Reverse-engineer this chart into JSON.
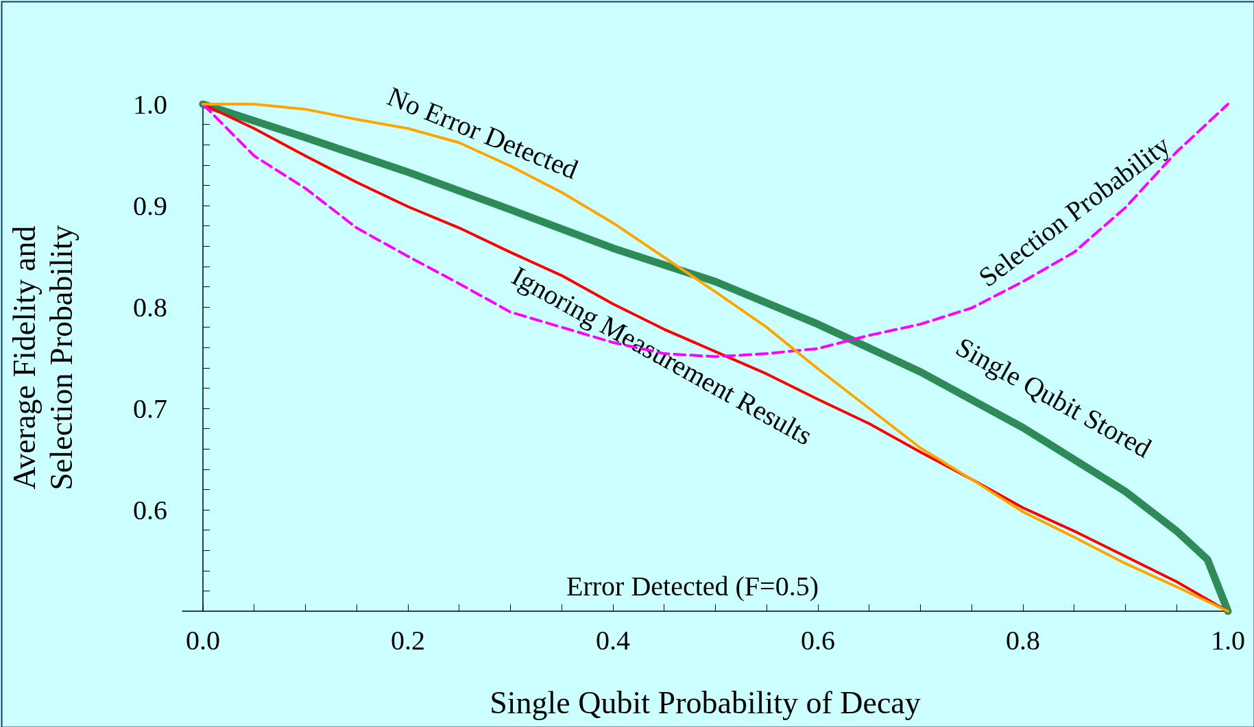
{
  "chart_data": {
    "type": "line",
    "xlabel": "Single Qubit Probability of Decay",
    "ylabel": "Average Fidelity and\nSelection Probability",
    "x": [
      0,
      0.05,
      0.1,
      0.15,
      0.2,
      0.25,
      0.3,
      0.35,
      0.4,
      0.45,
      0.5,
      0.55,
      0.6,
      0.65,
      0.7,
      0.75,
      0.8,
      0.85,
      0.9,
      0.95,
      1.0
    ],
    "series": [
      {
        "name": "No Error Detected",
        "color": "#ffa500",
        "line_style": "solid",
        "values": [
          1,
          1,
          0.995,
          0.985,
          0.976,
          0.962,
          0.939,
          0.913,
          0.883,
          0.849,
          0.815,
          0.78,
          0.739,
          0.7,
          0.661,
          0.63,
          0.598,
          0.573,
          0.547,
          0.524,
          0.5
        ]
      },
      {
        "name": "Selection Probability",
        "color": "#ff00ff",
        "line_style": "dashed",
        "values": [
          1,
          0.949,
          0.917,
          0.878,
          0.85,
          0.823,
          0.795,
          0.78,
          0.765,
          0.754,
          0.751,
          0.754,
          0.759,
          0.772,
          0.783,
          0.799,
          0.825,
          0.854,
          0.898,
          0.953,
          1.0
        ]
      },
      {
        "name": "Ignoring Measurement Results",
        "color": "#ff0000",
        "line_style": "solid",
        "values": [
          1,
          0.976,
          0.949,
          0.923,
          0.899,
          0.878,
          0.854,
          0.831,
          0.803,
          0.778,
          0.756,
          0.734,
          0.709,
          0.685,
          0.657,
          0.63,
          0.602,
          0.579,
          0.554,
          0.529,
          0.5
        ]
      },
      {
        "name": "Single Qubit Stored",
        "color": "#2e8b57",
        "line_style": "solid",
        "x": [
          0,
          0.1,
          0.2,
          0.3,
          0.4,
          0.5,
          0.6,
          0.7,
          0.8,
          0.9,
          0.95,
          0.98,
          1.0
        ],
        "values": [
          1,
          0.967,
          0.933,
          0.896,
          0.858,
          0.825,
          0.783,
          0.736,
          0.681,
          0.618,
          0.579,
          0.551,
          0.5
        ]
      }
    ],
    "annotations": [
      "Error Detected (F=0.5)"
    ],
    "xlim": [
      -0.02,
      1.0
    ],
    "ylim": [
      0.5,
      1.0
    ],
    "xticks": [
      {
        "value": 0,
        "label": "0.0"
      },
      {
        "value": 0.05,
        "label": null
      },
      {
        "value": 0.1,
        "label": null
      },
      {
        "value": 0.15,
        "label": null
      },
      {
        "value": 0.2,
        "label": "0.2"
      },
      {
        "value": 0.25,
        "label": null
      },
      {
        "value": 0.3,
        "label": null
      },
      {
        "value": 0.35,
        "label": null
      },
      {
        "value": 0.4,
        "label": "0.4"
      },
      {
        "value": 0.45,
        "label": null
      },
      {
        "value": 0.5,
        "label": null
      },
      {
        "value": 0.55,
        "label": null
      },
      {
        "value": 0.6,
        "label": "0.6"
      },
      {
        "value": 0.65,
        "label": null
      },
      {
        "value": 0.7,
        "label": null
      },
      {
        "value": 0.75,
        "label": null
      },
      {
        "value": 0.8,
        "label": "0.8"
      },
      {
        "value": 0.85,
        "label": null
      },
      {
        "value": 0.9,
        "label": null
      },
      {
        "value": 0.95,
        "label": null
      },
      {
        "value": 1.0,
        "label": "1.0"
      }
    ],
    "yticks": [
      {
        "value": 0.52,
        "label": null
      },
      {
        "value": 0.54,
        "label": null
      },
      {
        "value": 0.56,
        "label": null
      },
      {
        "value": 0.58,
        "label": null
      },
      {
        "value": 0.6,
        "label": "0.6"
      },
      {
        "value": 0.62,
        "label": null
      },
      {
        "value": 0.64,
        "label": null
      },
      {
        "value": 0.66,
        "label": null
      },
      {
        "value": 0.68,
        "label": null
      },
      {
        "value": 0.7,
        "label": "0.7"
      },
      {
        "value": 0.72,
        "label": null
      },
      {
        "value": 0.74,
        "label": null
      },
      {
        "value": 0.76,
        "label": null
      },
      {
        "value": 0.78,
        "label": null
      },
      {
        "value": 0.8,
        "label": "0.8"
      },
      {
        "value": 0.82,
        "label": null
      },
      {
        "value": 0.84,
        "label": null
      },
      {
        "value": 0.86,
        "label": null
      },
      {
        "value": 0.88,
        "label": null
      },
      {
        "value": 0.9,
        "label": "0.9"
      },
      {
        "value": 0.92,
        "label": null
      },
      {
        "value": 0.94,
        "label": null
      },
      {
        "value": 0.96,
        "label": null
      },
      {
        "value": 0.98,
        "label": null
      },
      {
        "value": 1.0,
        "label": "1.0"
      }
    ],
    "grid": false,
    "legend": false,
    "marker": "none"
  }
}
